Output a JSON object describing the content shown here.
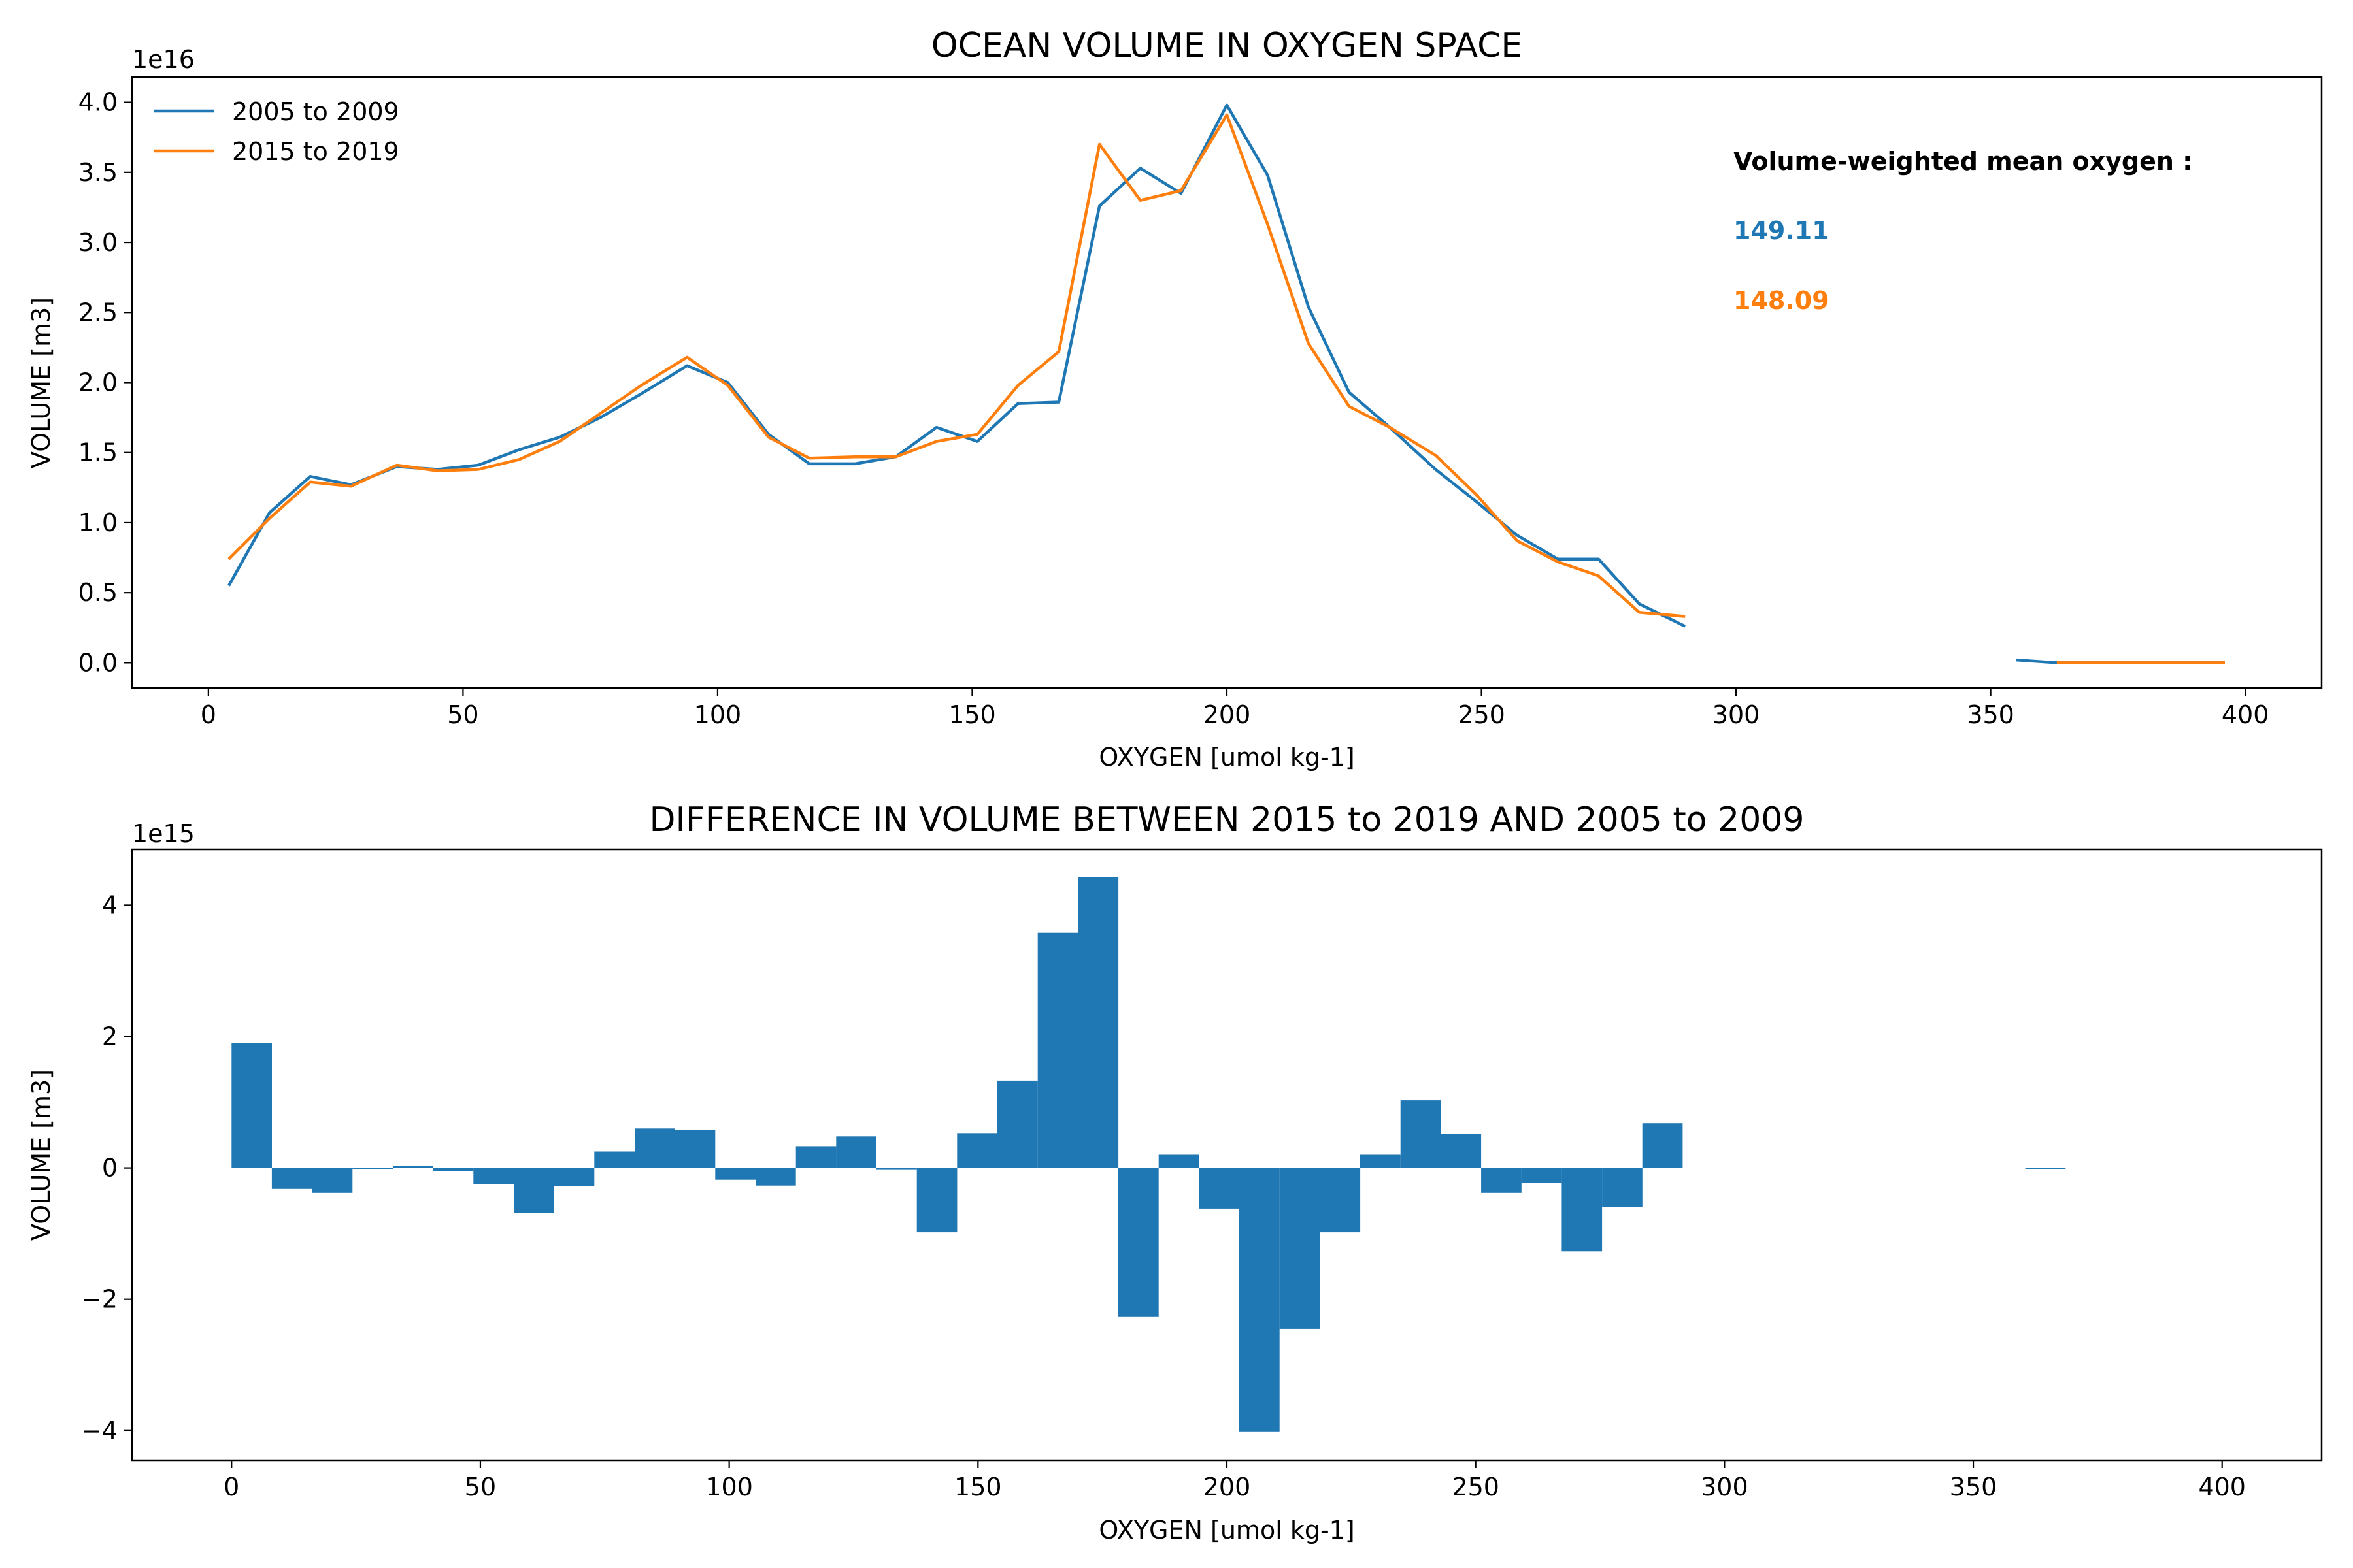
{
  "colors": {
    "series1": "#1f77b4",
    "series2": "#ff7f0e",
    "bars": "#1f77b4"
  },
  "chart_data": [
    {
      "type": "line",
      "title": "OCEAN VOLUME IN OXYGEN SPACE",
      "xlabel": "OXYGEN [umol kg-1]",
      "ylabel": "VOLUME [m3]",
      "y_offset_label": "1e16",
      "xlim": [
        -15,
        415
      ],
      "ylim": [
        -0.18,
        4.18
      ],
      "x_ticks": [
        0,
        50,
        100,
        150,
        200,
        250,
        300,
        350,
        400
      ],
      "y_ticks": [
        0.0,
        0.5,
        1.0,
        1.5,
        2.0,
        2.5,
        3.0,
        3.5,
        4.0
      ],
      "y_tick_labels": [
        "0.0",
        "0.5",
        "1.0",
        "1.5",
        "2.0",
        "2.5",
        "3.0",
        "3.5",
        "4.0"
      ],
      "grid": false,
      "legend_position": "top-left",
      "series": [
        {
          "name": "2005 to 2009",
          "points": [
            [
              4,
              0.55
            ],
            [
              12,
              1.07
            ],
            [
              20,
              1.33
            ],
            [
              28,
              1.27
            ],
            [
              37,
              1.4
            ],
            [
              45,
              1.38
            ],
            [
              53,
              1.41
            ],
            [
              61,
              1.52
            ],
            [
              69,
              1.61
            ],
            [
              77,
              1.75
            ],
            [
              85,
              1.92
            ],
            [
              94,
              2.12
            ],
            [
              102,
              2.0
            ],
            [
              110,
              1.63
            ],
            [
              118,
              1.42
            ],
            [
              127,
              1.42
            ],
            [
              135,
              1.47
            ],
            [
              143,
              1.68
            ],
            [
              151,
              1.58
            ],
            [
              159,
              1.85
            ],
            [
              167,
              1.86
            ],
            [
              175,
              3.26
            ],
            [
              183,
              3.53
            ],
            [
              191,
              3.35
            ],
            [
              200,
              3.98
            ],
            [
              208,
              3.48
            ],
            [
              216,
              2.54
            ],
            [
              224,
              1.93
            ],
            [
              232,
              1.68
            ],
            [
              241,
              1.38
            ],
            [
              249,
              1.15
            ],
            [
              257,
              0.91
            ],
            [
              265,
              0.74
            ],
            [
              273,
              0.74
            ],
            [
              281,
              0.42
            ],
            [
              290,
              0.26
            ]
          ],
          "points_tail": [
            [
              355,
              0.02
            ],
            [
              363,
              0.0
            ],
            [
              371,
              0.0
            ],
            [
              380,
              0.0
            ],
            [
              388,
              0.0
            ],
            [
              396,
              0.0
            ]
          ]
        },
        {
          "name": "2015 to 2019",
          "points": [
            [
              4,
              0.74
            ],
            [
              12,
              1.03
            ],
            [
              20,
              1.29
            ],
            [
              28,
              1.26
            ],
            [
              37,
              1.41
            ],
            [
              45,
              1.37
            ],
            [
              53,
              1.38
            ],
            [
              61,
              1.45
            ],
            [
              69,
              1.58
            ],
            [
              77,
              1.78
            ],
            [
              85,
              1.98
            ],
            [
              94,
              2.18
            ],
            [
              102,
              1.98
            ],
            [
              110,
              1.61
            ],
            [
              118,
              1.46
            ],
            [
              127,
              1.47
            ],
            [
              135,
              1.47
            ],
            [
              143,
              1.58
            ],
            [
              151,
              1.63
            ],
            [
              159,
              1.98
            ],
            [
              167,
              2.22
            ],
            [
              175,
              3.7
            ],
            [
              183,
              3.3
            ],
            [
              191,
              3.37
            ],
            [
              200,
              3.91
            ],
            [
              208,
              3.13
            ],
            [
              216,
              2.28
            ],
            [
              224,
              1.83
            ],
            [
              232,
              1.68
            ],
            [
              241,
              1.48
            ],
            [
              249,
              1.2
            ],
            [
              257,
              0.87
            ],
            [
              265,
              0.72
            ],
            [
              273,
              0.62
            ],
            [
              281,
              0.36
            ],
            [
              290,
              0.33
            ]
          ],
          "points_tail": [
            [
              363,
              0.0
            ],
            [
              371,
              0.0
            ],
            [
              380,
              0.0
            ],
            [
              388,
              0.0
            ],
            [
              396,
              0.0
            ]
          ]
        }
      ],
      "annotation": {
        "heading": "Volume-weighted mean oxygen :",
        "value1": "149.11",
        "value2": "148.09"
      }
    },
    {
      "type": "bar",
      "title": "DIFFERENCE IN VOLUME BETWEEN 2015 to 2019 AND 2005 to 2009",
      "xlabel": "OXYGEN [umol kg-1]",
      "ylabel": "VOLUME [m3]",
      "y_offset_label": "1e15",
      "xlim": [
        -20,
        420
      ],
      "ylim": [
        -4.45,
        4.85
      ],
      "x_ticks": [
        0,
        50,
        100,
        150,
        200,
        250,
        300,
        350,
        400
      ],
      "y_ticks": [
        -4,
        -2,
        0,
        2,
        4
      ],
      "y_tick_labels": [
        "−4",
        "−2",
        "0",
        "2",
        "4"
      ],
      "grid": false,
      "bar_width": 8.1,
      "bars": [
        [
          4.05,
          1.9
        ],
        [
          12.15,
          -0.32
        ],
        [
          20.25,
          -0.38
        ],
        [
          28.35,
          -0.02
        ],
        [
          36.45,
          0.03
        ],
        [
          44.55,
          -0.05
        ],
        [
          52.65,
          -0.25
        ],
        [
          60.75,
          -0.68
        ],
        [
          68.85,
          -0.28
        ],
        [
          76.95,
          0.25
        ],
        [
          85.05,
          0.6
        ],
        [
          93.15,
          0.58
        ],
        [
          101.25,
          -0.18
        ],
        [
          109.35,
          -0.27
        ],
        [
          117.45,
          0.33
        ],
        [
          125.55,
          0.48
        ],
        [
          133.65,
          -0.03
        ],
        [
          141.75,
          -0.98
        ],
        [
          149.85,
          0.53
        ],
        [
          157.95,
          1.33
        ],
        [
          166.05,
          3.58
        ],
        [
          174.15,
          4.43
        ],
        [
          182.25,
          -2.27
        ],
        [
          190.35,
          0.2
        ],
        [
          198.45,
          -0.62
        ],
        [
          206.55,
          -4.02
        ],
        [
          214.65,
          -2.45
        ],
        [
          222.75,
          -0.98
        ],
        [
          230.85,
          0.2
        ],
        [
          238.95,
          1.03
        ],
        [
          247.05,
          0.52
        ],
        [
          255.15,
          -0.38
        ],
        [
          263.25,
          -0.23
        ],
        [
          271.35,
          -1.27
        ],
        [
          279.45,
          -0.6
        ],
        [
          287.55,
          0.68
        ],
        [
          364.5,
          -0.02
        ]
      ]
    }
  ]
}
